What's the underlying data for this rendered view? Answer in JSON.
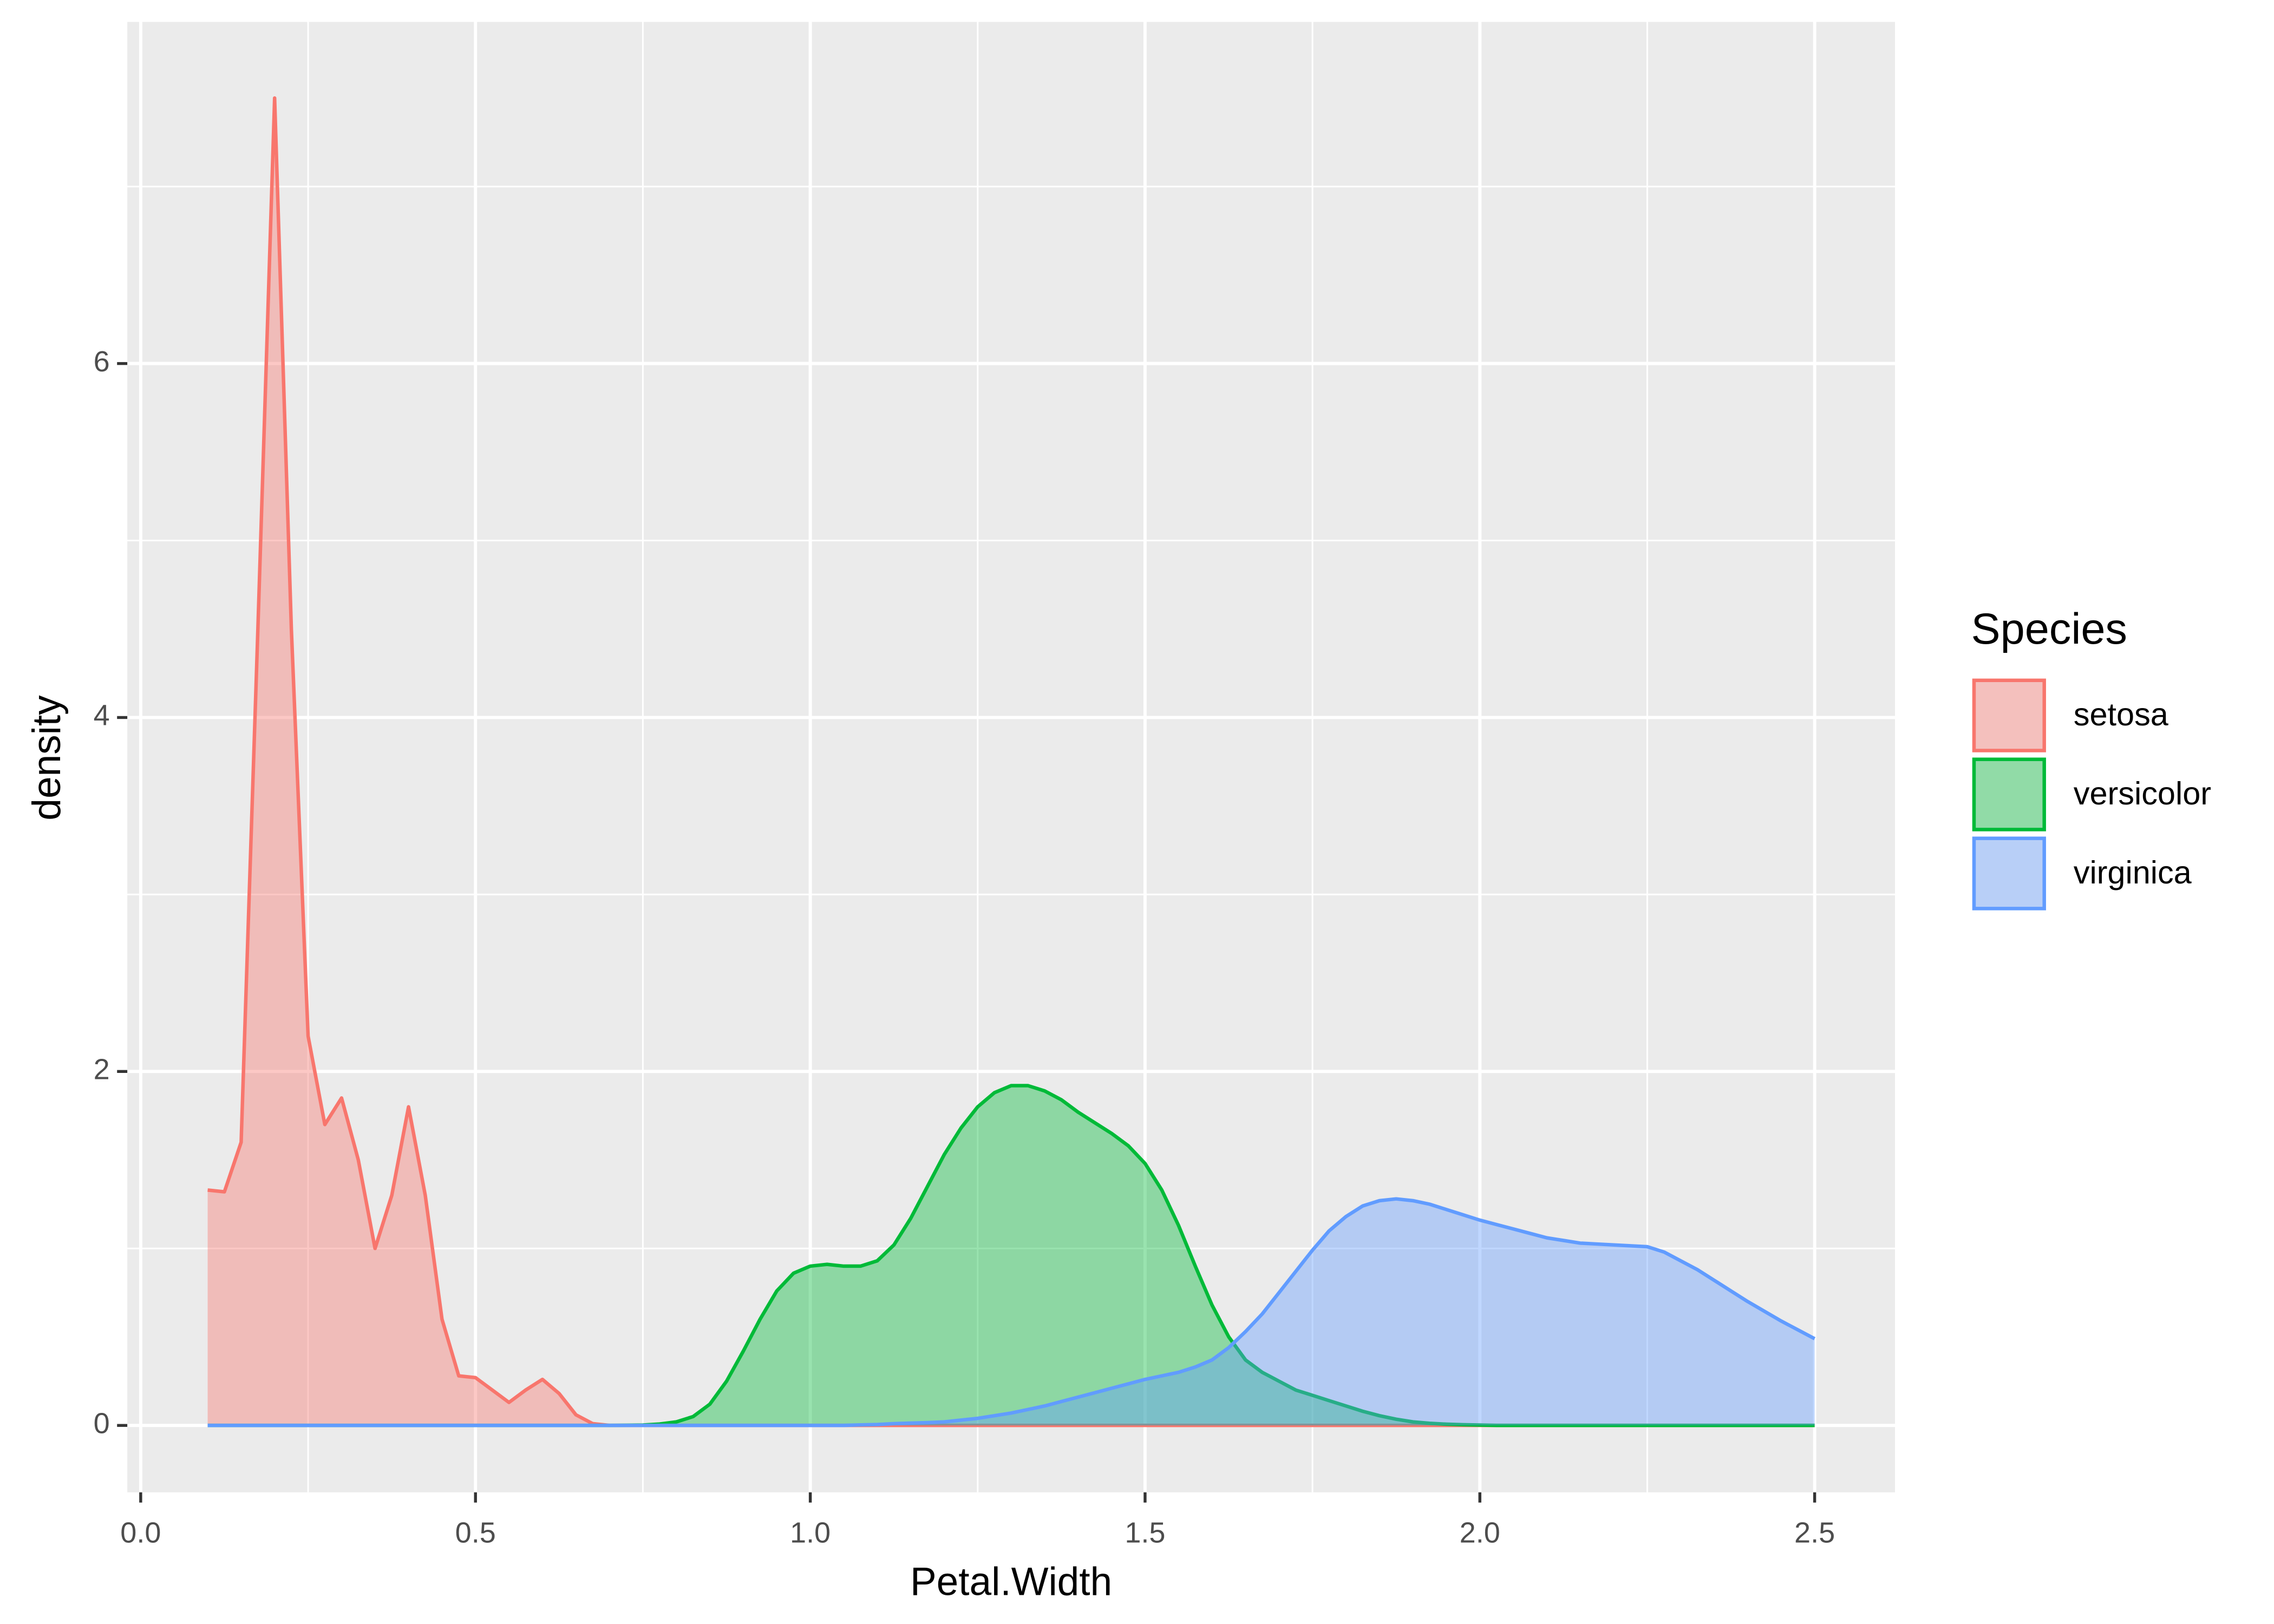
{
  "chart_data": {
    "type": "density",
    "x_label": "Petal.Width",
    "y_label": "density",
    "legend_title": "Species",
    "legend_position": "right",
    "grid": true,
    "fill_opacity": 0.4,
    "x": [
      0.1,
      0.125,
      0.15,
      0.175,
      0.2,
      0.225,
      0.25,
      0.275,
      0.3,
      0.325,
      0.35,
      0.375,
      0.4,
      0.425,
      0.45,
      0.475,
      0.5,
      0.525,
      0.55,
      0.575,
      0.6,
      0.625,
      0.65,
      0.675,
      0.7,
      0.725,
      0.75,
      0.775,
      0.8,
      0.825,
      0.85,
      0.875,
      0.9,
      0.925,
      0.95,
      0.975,
      1.0,
      1.025,
      1.05,
      1.075,
      1.1,
      1.125,
      1.15,
      1.175,
      1.2,
      1.225,
      1.25,
      1.275,
      1.3,
      1.325,
      1.35,
      1.375,
      1.4,
      1.425,
      1.45,
      1.475,
      1.5,
      1.525,
      1.55,
      1.575,
      1.6,
      1.625,
      1.65,
      1.675,
      1.7,
      1.725,
      1.75,
      1.775,
      1.8,
      1.825,
      1.85,
      1.875,
      1.9,
      1.925,
      1.95,
      1.975,
      2.0,
      2.025,
      2.05,
      2.075,
      2.1,
      2.125,
      2.15,
      2.175,
      2.2,
      2.225,
      2.25,
      2.275,
      2.3,
      2.325,
      2.35,
      2.375,
      2.4,
      2.425,
      2.45,
      2.475,
      2.5
    ],
    "series": [
      {
        "name": "setosa",
        "color": "#F8766D",
        "values": [
          1.33,
          1.32,
          1.6,
          4.5,
          7.5,
          4.5,
          2.2,
          1.7,
          1.85,
          1.5,
          1.0,
          1.3,
          1.8,
          1.3,
          0.6,
          0.28,
          0.27,
          0.2,
          0.13,
          0.2,
          0.26,
          0.18,
          0.06,
          0.01,
          0,
          0,
          0,
          0,
          0,
          0,
          0,
          0,
          0,
          0,
          0,
          0,
          0,
          0,
          0,
          0,
          0,
          0,
          0,
          0,
          0,
          0,
          0,
          0,
          0,
          0,
          0,
          0,
          0,
          0,
          0,
          0,
          0,
          0,
          0,
          0,
          0,
          0,
          0,
          0,
          0,
          0,
          0,
          0,
          0,
          0,
          0,
          0,
          0,
          0,
          0,
          0,
          0,
          0,
          0,
          0,
          0,
          0,
          0,
          0,
          0,
          0,
          0,
          0,
          0,
          0,
          0,
          0,
          0,
          0,
          0,
          0,
          0
        ]
      },
      {
        "name": "versicolor",
        "color": "#00BA38",
        "values": [
          0,
          0,
          0,
          0,
          0,
          0,
          0,
          0,
          0,
          0,
          0,
          0,
          0,
          0,
          0,
          0,
          0,
          0,
          0,
          0,
          0,
          0,
          0,
          0,
          0,
          0.001,
          0.002,
          0.008,
          0.02,
          0.05,
          0.12,
          0.25,
          0.42,
          0.6,
          0.76,
          0.86,
          0.9,
          0.91,
          0.9,
          0.9,
          0.93,
          1.02,
          1.17,
          1.35,
          1.53,
          1.68,
          1.8,
          1.88,
          1.92,
          1.92,
          1.89,
          1.84,
          1.77,
          1.71,
          1.65,
          1.58,
          1.48,
          1.33,
          1.13,
          0.9,
          0.68,
          0.5,
          0.37,
          0.3,
          0.25,
          0.2,
          0.17,
          0.14,
          0.11,
          0.08,
          0.055,
          0.035,
          0.02,
          0.012,
          0.007,
          0.004,
          0.002,
          0,
          0,
          0,
          0,
          0,
          0,
          0,
          0,
          0,
          0,
          0,
          0,
          0,
          0,
          0,
          0,
          0,
          0,
          0,
          0
        ]
      },
      {
        "name": "virginica",
        "color": "#619CFF",
        "values": [
          0,
          0,
          0,
          0,
          0,
          0,
          0,
          0,
          0,
          0,
          0,
          0,
          0,
          0,
          0,
          0,
          0,
          0,
          0,
          0,
          0,
          0,
          0,
          0,
          0,
          0,
          0,
          0,
          0,
          0,
          0,
          0,
          0,
          0,
          0,
          0,
          0,
          0,
          0,
          0.003,
          0.005,
          0.01,
          0.013,
          0.016,
          0.02,
          0.03,
          0.04,
          0.055,
          0.07,
          0.09,
          0.11,
          0.135,
          0.16,
          0.185,
          0.21,
          0.235,
          0.26,
          0.28,
          0.3,
          0.33,
          0.37,
          0.44,
          0.53,
          0.63,
          0.75,
          0.87,
          0.99,
          1.1,
          1.18,
          1.24,
          1.27,
          1.28,
          1.27,
          1.25,
          1.22,
          1.19,
          1.16,
          1.135,
          1.11,
          1.085,
          1.06,
          1.045,
          1.03,
          1.025,
          1.02,
          1.015,
          1.01,
          0.98,
          0.93,
          0.88,
          0.82,
          0.76,
          0.7,
          0.645,
          0.59,
          0.54,
          0.49
        ]
      }
    ],
    "xlim": [
      -0.02,
      2.62
    ],
    "ylim": [
      -0.378,
      7.93
    ],
    "xticks": [
      {
        "value": 0,
        "label": "0.0"
      },
      0.5,
      {
        "value": 1,
        "label": "1.0"
      },
      1.5,
      {
        "value": 2,
        "label": "2.0"
      },
      2.5
    ],
    "yticks": [
      0,
      2,
      4,
      6
    ],
    "xminor": [
      0.25,
      0.75,
      1.25,
      1.75,
      2.25
    ],
    "yminor": [
      1,
      3,
      5,
      7
    ]
  }
}
